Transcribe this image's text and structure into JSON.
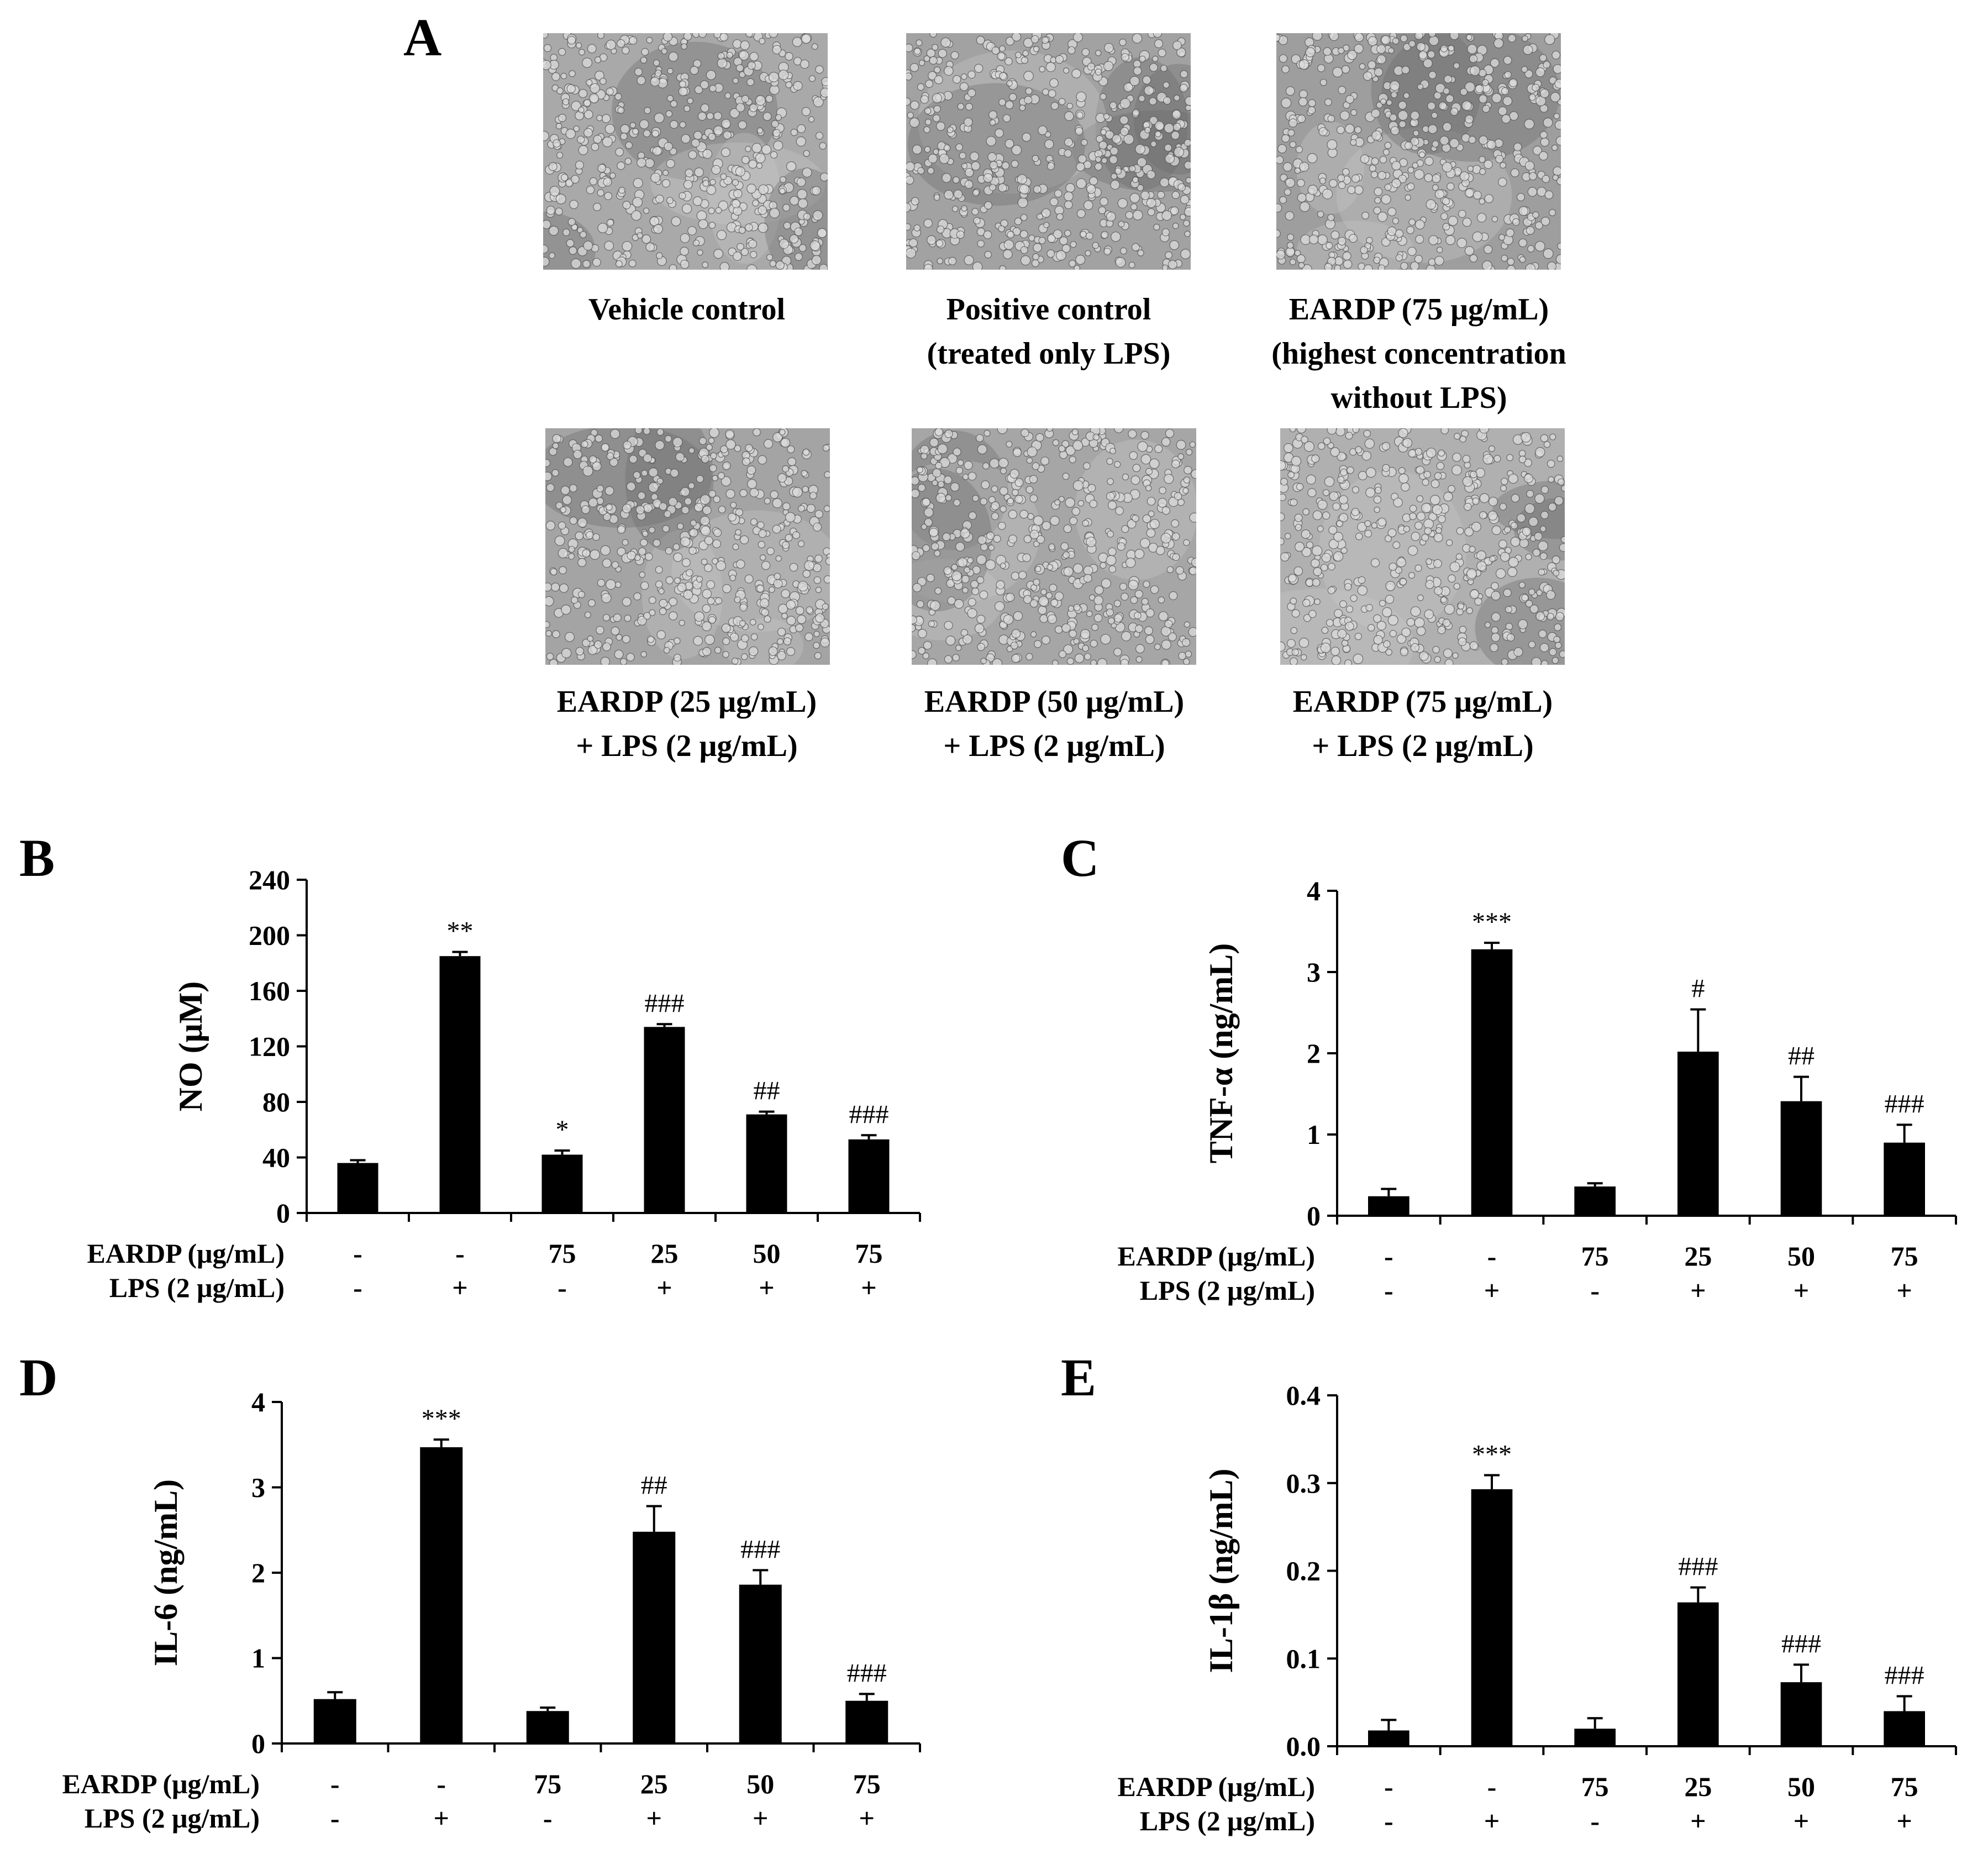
{
  "panel_a": {
    "letter": "A",
    "images": [
      {
        "caption": [
          "Vehicle control"
        ]
      },
      {
        "caption": [
          "Positive control",
          "(treated only LPS)"
        ]
      },
      {
        "caption": [
          "EARDP (75 μg/mL)",
          "(highest concentration",
          "without LPS)"
        ]
      },
      {
        "caption": [
          "EARDP (25 μg/mL)",
          "+ LPS (2 μg/mL)"
        ]
      },
      {
        "caption": [
          "EARDP (50 μg/mL)",
          "+ LPS (2 μg/mL)"
        ]
      },
      {
        "caption": [
          "EARDP (75 μg/mL)",
          "+ LPS (2 μg/mL)"
        ]
      }
    ]
  },
  "conditions": {
    "eardp_label": "EARDP (μg/mL)",
    "lps_label": "LPS (2  μg/mL)",
    "eardp": [
      "-",
      "-",
      "75",
      "25",
      "50",
      "75"
    ],
    "lps": [
      "-",
      "+",
      "-",
      "+",
      "+",
      "+"
    ]
  },
  "chart_data": [
    {
      "panel": "B",
      "type": "bar",
      "xlabel": "",
      "ylabel": "NO (μM)",
      "ylim": [
        0,
        240
      ],
      "yticks": [
        "0",
        "40",
        "80",
        "120",
        "160",
        "200",
        "240"
      ],
      "values": [
        36,
        185,
        42,
        134,
        71,
        53
      ],
      "errors": [
        2,
        3,
        3,
        2,
        2,
        3
      ],
      "annotations": [
        "",
        "**",
        "*",
        "###",
        "##",
        "###"
      ]
    },
    {
      "panel": "C",
      "type": "bar",
      "xlabel": "",
      "ylabel": "TNF-α (ng/mL)",
      "ylim": [
        0,
        4
      ],
      "yticks": [
        "0",
        "1",
        "2",
        "3",
        "4"
      ],
      "values": [
        0.24,
        3.28,
        0.36,
        2.02,
        1.41,
        0.9
      ],
      "errors": [
        0.09,
        0.08,
        0.04,
        0.52,
        0.3,
        0.22
      ],
      "annotations": [
        "",
        "***",
        "",
        "#",
        "##",
        "###"
      ]
    },
    {
      "panel": "D",
      "type": "bar",
      "xlabel": "",
      "ylabel": "IL-6 (ng/mL)",
      "ylim": [
        0,
        4
      ],
      "yticks": [
        "0",
        "1",
        "2",
        "3",
        "4"
      ],
      "values": [
        0.52,
        3.47,
        0.38,
        2.48,
        1.86,
        0.5
      ],
      "errors": [
        0.08,
        0.09,
        0.04,
        0.3,
        0.17,
        0.08
      ],
      "annotations": [
        "",
        "***",
        "",
        "##",
        "###",
        "###"
      ]
    },
    {
      "panel": "E",
      "type": "bar",
      "xlabel": "",
      "ylabel": "IL-1β (ng/mL)",
      "ylim": [
        0,
        0.4
      ],
      "yticks": [
        "0.0",
        "0.1",
        "0.2",
        "0.3",
        "0.4"
      ],
      "values": [
        0.018,
        0.293,
        0.02,
        0.164,
        0.073,
        0.04
      ],
      "errors": [
        0.012,
        0.016,
        0.012,
        0.017,
        0.02,
        0.017
      ],
      "annotations": [
        "",
        "***",
        "",
        "###",
        "###",
        "###"
      ]
    }
  ]
}
